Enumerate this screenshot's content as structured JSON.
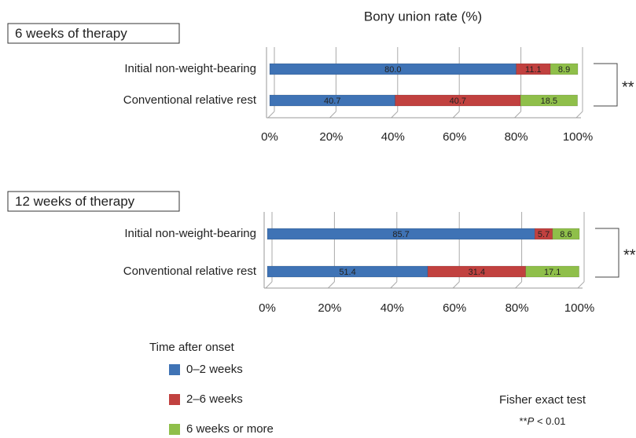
{
  "title": "Bony union rate (%)",
  "legend_title": "Time after onset",
  "test_name": "Fisher exact test",
  "significance_note": {
    "stars": "**",
    "symbol": "P",
    "rest": " < 0.01"
  },
  "chart_data": [
    {
      "type": "bar",
      "orientation": "horizontal",
      "stacked": true,
      "panel_label": "6 weeks of therapy",
      "categories": [
        "Initial non-weight-bearing",
        "Conventional relative rest"
      ],
      "series": [
        {
          "name": "0–2 weeks",
          "color": "#3f73b5",
          "values": [
            80.0,
            40.7
          ],
          "value_labels": [
            "80.0",
            "40.7"
          ]
        },
        {
          "name": "2–6 weeks",
          "color": "#c1413f",
          "values": [
            11.1,
            40.7
          ],
          "value_labels": [
            "11.1",
            "40.7"
          ]
        },
        {
          "name": "6 weeks or more",
          "color": "#8fbf4a",
          "values": [
            8.9,
            18.5
          ],
          "value_labels": [
            "8.9",
            "18.5"
          ]
        }
      ],
      "xlim": [
        0,
        100
      ],
      "xticks": [
        {
          "value": 0,
          "label": "0%"
        },
        {
          "value": 20,
          "label": "20%"
        },
        {
          "value": 40,
          "label": "40%"
        },
        {
          "value": 60,
          "label": "60%"
        },
        {
          "value": 80,
          "label": "80%"
        },
        {
          "value": 100,
          "label": "100%"
        }
      ],
      "annotation": "**",
      "grid": true
    },
    {
      "type": "bar",
      "orientation": "horizontal",
      "stacked": true,
      "panel_label": "12 weeks of therapy",
      "categories": [
        "Initial non-weight-bearing",
        "Conventional relative rest"
      ],
      "series": [
        {
          "color": "#3f73b5",
          "values": [
            85.7,
            51.4
          ],
          "value_labels": [
            "85.7",
            "51.4"
          ]
        },
        {
          "color": "#c1413f",
          "values": [
            5.7,
            31.4
          ],
          "value_labels": [
            "5.7",
            "31.4"
          ]
        },
        {
          "color": "#8fbf4a",
          "values": [
            8.6,
            17.1
          ],
          "value_labels": [
            "8.6",
            "17.1"
          ]
        }
      ],
      "xlim": [
        0,
        100
      ],
      "xticks": [
        {
          "value": 0,
          "label": "0%"
        },
        {
          "value": 20,
          "label": "20%"
        },
        {
          "value": 40,
          "label": "40%"
        },
        {
          "value": 60,
          "label": "60%"
        },
        {
          "value": 80,
          "label": "80%"
        },
        {
          "value": 100,
          "label": "100%"
        }
      ],
      "annotation": "**",
      "grid": true
    }
  ]
}
